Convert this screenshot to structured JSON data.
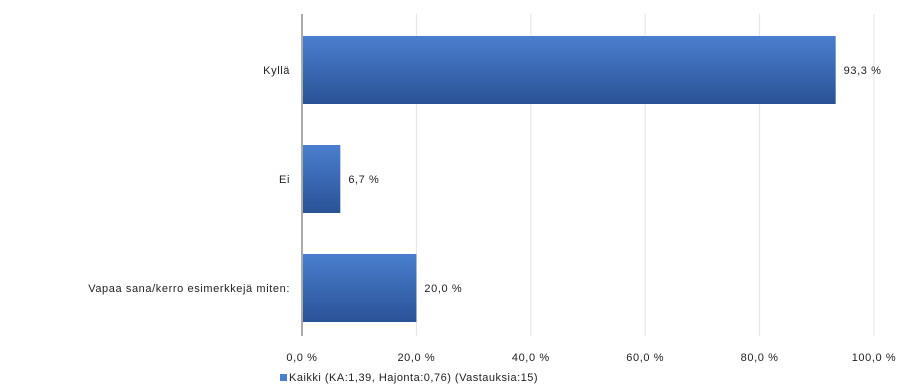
{
  "chart_data": {
    "type": "bar",
    "orientation": "horizontal",
    "categories": [
      "Kyllä",
      "Ei",
      "Vapaa sana/kerro esimerkkejä miten:"
    ],
    "series": [
      {
        "name": "Kaikki (KA:1,39, Hajonta:0,76) (Vastauksia:15)",
        "values": [
          93.3,
          6.7,
          20.0
        ],
        "labels": [
          "93,3 %",
          "6,7 %",
          "20,0 %"
        ]
      }
    ],
    "xlim": [
      0,
      100
    ],
    "xticks": [
      0,
      20,
      40,
      60,
      80,
      100
    ],
    "xtick_labels": [
      "0,0 %",
      "20,0 %",
      "40,0 %",
      "60,0 %",
      "80,0 %",
      "100,0 %"
    ],
    "grid": true,
    "legend_position": "bottom-center",
    "colors": {
      "bar_top": "#4a7fcf",
      "bar_bottom": "#2a5296",
      "grid": "#e4e4e4",
      "axis": "#555555"
    }
  }
}
